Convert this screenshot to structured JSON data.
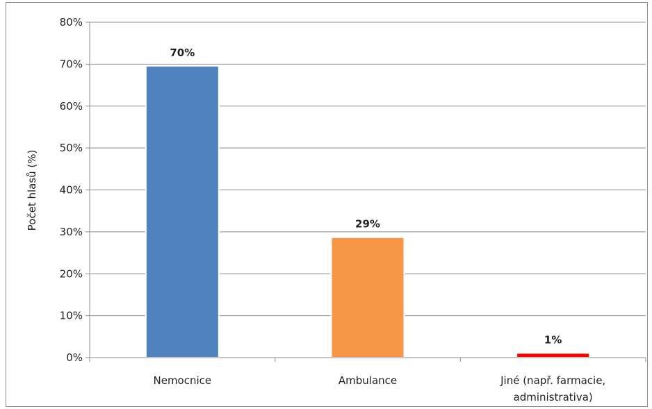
{
  "chart_data": {
    "type": "bar",
    "title": "",
    "xlabel": "",
    "ylabel": "Počet hlasů (%)",
    "ylim": [
      0,
      80
    ],
    "yticks": [
      "0%",
      "10%",
      "20%",
      "30%",
      "40%",
      "50%",
      "60%",
      "70%",
      "80%"
    ],
    "grid": true,
    "legend": "none",
    "categories": [
      [
        "Nemocnice"
      ],
      [
        "Ambulance"
      ],
      [
        "Jiné (např. farmacie,",
        "administrativa)"
      ]
    ],
    "values": [
      69.6,
      28.7,
      1.1
    ],
    "data_labels": [
      "70%",
      "29%",
      "1%"
    ],
    "colors": [
      "#4f81bd",
      "#f79646",
      "#ff0000"
    ]
  }
}
